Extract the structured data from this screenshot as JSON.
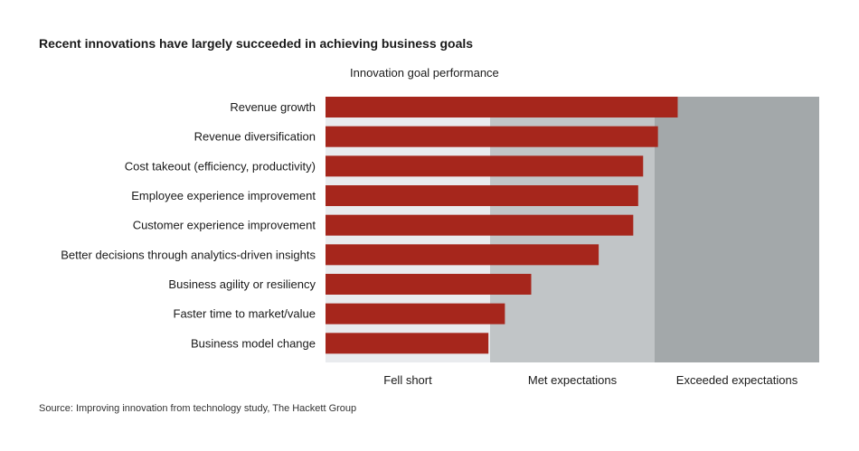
{
  "chart_data": {
    "type": "bar",
    "orientation": "horizontal",
    "title": "Recent innovations have largely succeeded in achieving business goals",
    "subtitle": "Innovation goal performance",
    "categories": [
      "Revenue growth",
      "Revenue diversification",
      "Cost takeout (efficiency, productivity)",
      "Employee experience improvement",
      "Customer experience improvement",
      "Better decisions through analytics-driven insights",
      "Business agility or resiliency",
      "Faster time to market/value",
      "Business model change"
    ],
    "values": [
      2.14,
      2.02,
      1.93,
      1.9,
      1.87,
      1.66,
      1.25,
      1.09,
      0.99
    ],
    "xlim": [
      0,
      3
    ],
    "bands": [
      {
        "label": "Fell short",
        "from": 0,
        "to": 1,
        "color": "#e9ebee"
      },
      {
        "label": "Met expectations",
        "from": 1,
        "to": 2,
        "color": "#c1c5c7"
      },
      {
        "label": "Exceeded expectations",
        "from": 2,
        "to": 3,
        "color": "#a3a8aa"
      }
    ],
    "bar_color": "#a6261c",
    "grid": false,
    "legend": "none"
  },
  "source": "Source: Improving innovation from technology study, The Hackett Group"
}
